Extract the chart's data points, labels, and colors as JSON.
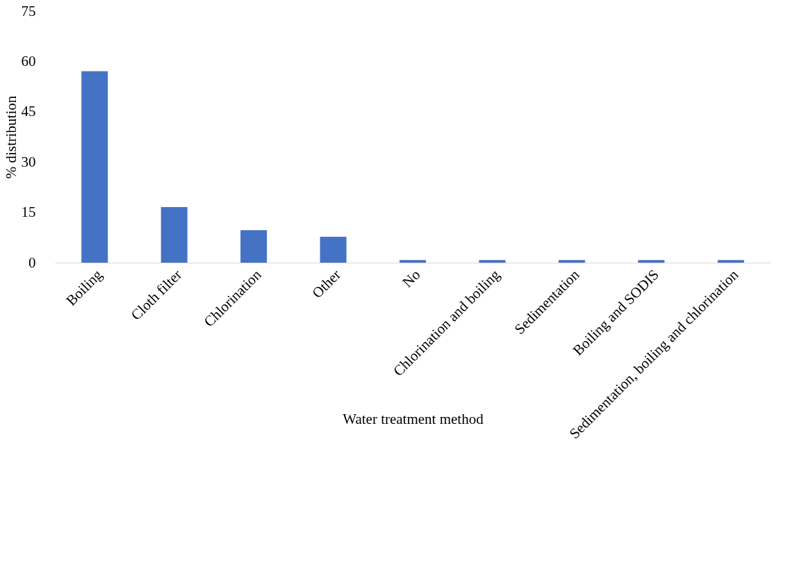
{
  "chart_data": {
    "type": "bar",
    "xlabel": "Water treatment method",
    "ylabel": "% distribution",
    "categories": [
      "Boiling",
      "Cloth filter",
      "Chlorination",
      "Other",
      "No",
      "Chlorination and boiling",
      "Sedimentation",
      "Boiling and SODIS",
      "Sedimentation, boiling and chlorination"
    ],
    "values": [
      57.1,
      16.6,
      9.7,
      7.7,
      0.8,
      0.8,
      0.8,
      0.8,
      0.8
    ],
    "color": "#4472c4",
    "ylim": [
      0,
      75
    ],
    "yticks": [
      0,
      15,
      30,
      45,
      60,
      75
    ],
    "grid": false
  }
}
